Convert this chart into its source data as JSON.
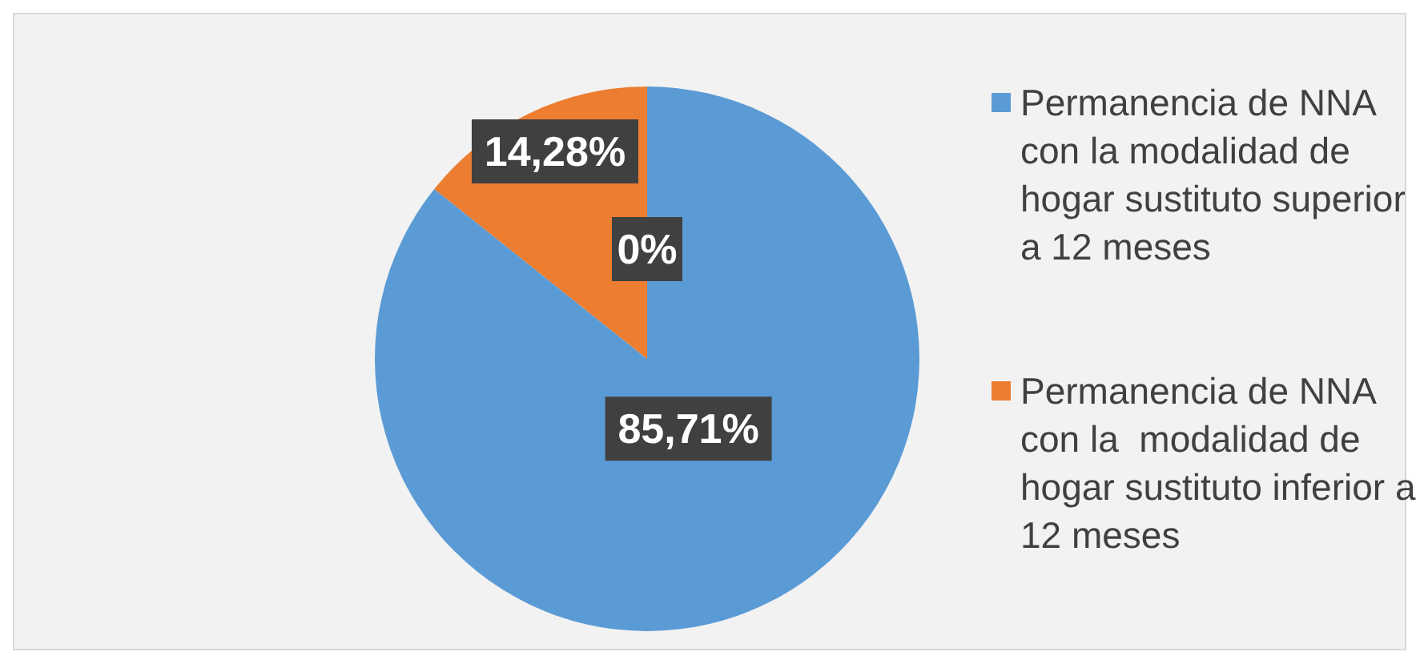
{
  "chart_data": {
    "type": "pie",
    "categories": [
      "Permanencia de NNA con la modalidad de hogar sustituto superior a 12 meses",
      "Permanencia de NNA con la  modalidad de hogar sustituto inferior a 12 meses",
      null
    ],
    "values": [
      85.71,
      14.28,
      0
    ],
    "colors": [
      "#5b9bd5",
      "#ed7d31",
      "#a5a5a5"
    ],
    "value_labels": [
      "85,71%",
      "14,28%",
      "0%"
    ],
    "legend": "right"
  }
}
